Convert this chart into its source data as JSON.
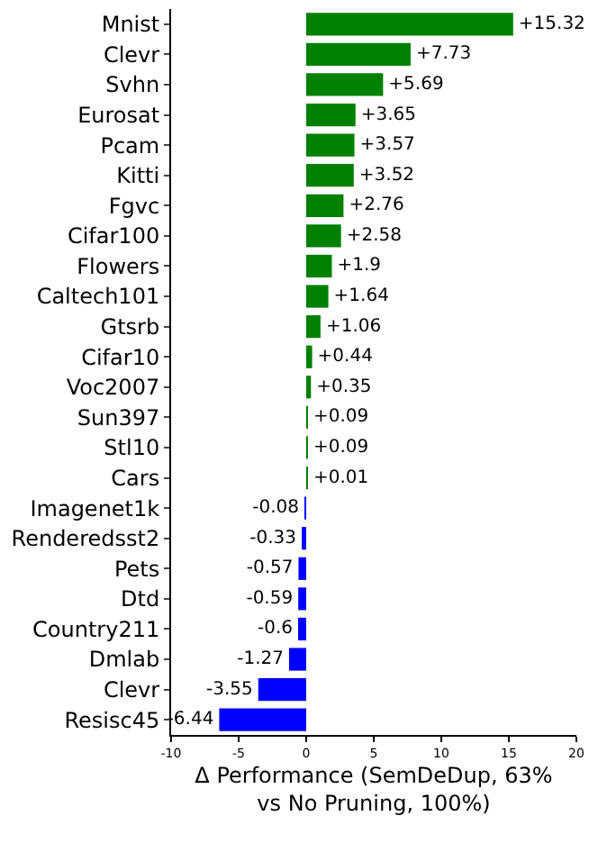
{
  "chart_data": {
    "type": "bar",
    "orientation": "horizontal",
    "xlabel": "Δ Performance (SemDeDup, 63%\nvs No Pruning, 100%)",
    "categories": [
      "Mnist",
      "Clevr",
      "Svhn",
      "Eurosat",
      "Pcam",
      "Kitti",
      "Fgvc",
      "Cifar100",
      "Flowers",
      "Caltech101",
      "Gtsrb",
      "Cifar10",
      "Voc2007",
      "Sun397",
      "Stl10",
      "Cars",
      "Imagenet1k",
      "Renderedsst2",
      "Pets",
      "Dtd",
      "Country211",
      "Dmlab",
      "Clevr",
      "Resisc45"
    ],
    "values": [
      15.32,
      7.73,
      5.69,
      3.65,
      3.57,
      3.52,
      2.76,
      2.58,
      1.9,
      1.64,
      1.06,
      0.44,
      0.35,
      0.09,
      0.09,
      0.01,
      -0.08,
      -0.33,
      -0.57,
      -0.59,
      -0.6,
      -1.27,
      -3.55,
      -6.44
    ],
    "value_labels": [
      "+15.32",
      "+7.73",
      "+5.69",
      "+3.65",
      "+3.57",
      "+3.52",
      "+2.76",
      "+2.58",
      "+1.9",
      "+1.64",
      "+1.06",
      "+0.44",
      "+0.35",
      "+0.09",
      "+0.09",
      "+0.01",
      "-0.08",
      "-0.33",
      "-0.57",
      "-0.59",
      "-0.6",
      "-1.27",
      "-3.55",
      "-6.44"
    ],
    "colors": [
      "#008000",
      "#008000",
      "#008000",
      "#008000",
      "#008000",
      "#008000",
      "#008000",
      "#008000",
      "#008000",
      "#008000",
      "#008000",
      "#008000",
      "#008000",
      "#008000",
      "#008000",
      "#008000",
      "#0000ff",
      "#0000ff",
      "#0000ff",
      "#0000ff",
      "#0000ff",
      "#0000ff",
      "#0000ff",
      "#0000ff"
    ],
    "xlim": [
      -10,
      20
    ],
    "xticks": [
      -10,
      -5,
      0,
      5,
      10,
      15,
      20
    ]
  }
}
